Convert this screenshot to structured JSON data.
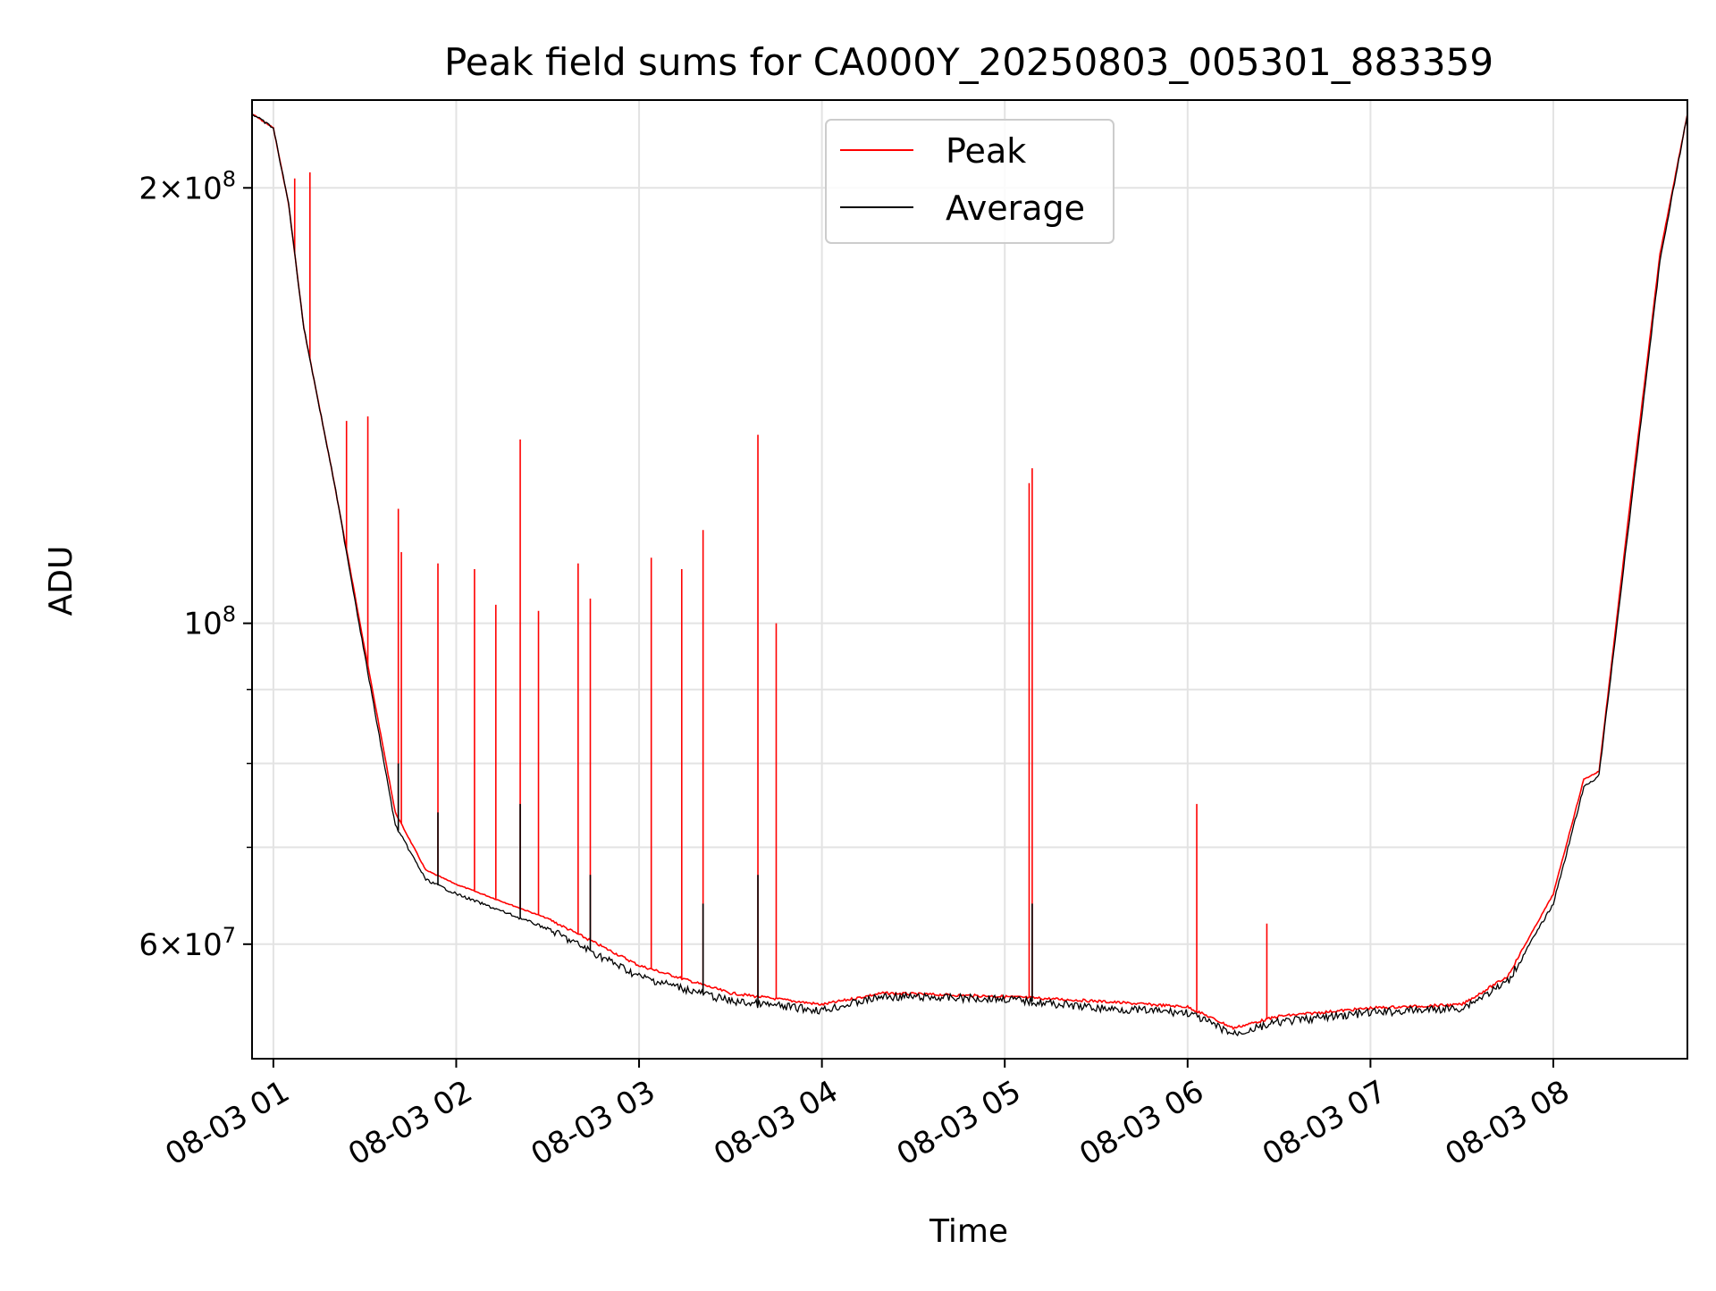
{
  "chart_data": {
    "type": "line",
    "title": "Peak field sums for CA000Y_20250803_005301_883359",
    "xlabel": "Time",
    "ylabel": "ADU",
    "y_scale": "log",
    "ylim": [
      50000000,
      230000000
    ],
    "xlim": [
      "2025-08-03 00:53:00",
      "2025-08-03 08:44:00"
    ],
    "grid": true,
    "legend_position": "upper-center",
    "x_tick_labels": [
      "08-03 01",
      "08-03 02",
      "08-03 03",
      "08-03 04",
      "08-03 05",
      "08-03 06",
      "08-03 07",
      "08-03 08"
    ],
    "x_ticks": [
      "2025-08-03 01:00",
      "2025-08-03 02:00",
      "2025-08-03 03:00",
      "2025-08-03 04:00",
      "2025-08-03 05:00",
      "2025-08-03 06:00",
      "2025-08-03 07:00",
      "2025-08-03 08:00"
    ],
    "y_major_ticks": [
      {
        "value": 60000000,
        "mantissa": "6",
        "exponent": "7"
      },
      {
        "value": 100000000,
        "mantissa": "",
        "exponent": "8"
      },
      {
        "value": 200000000,
        "mantissa": "2",
        "exponent": "8"
      }
    ],
    "y_minor_ticks": [
      70000000,
      80000000,
      90000000
    ],
    "series": [
      {
        "name": "Peak",
        "color": "#ff0000",
        "baseline": [
          [
            "2025-08-03 00:53",
            225000000
          ],
          [
            "2025-08-03 01:00",
            220000000
          ],
          [
            "2025-08-03 01:05",
            195000000
          ],
          [
            "2025-08-03 01:10",
            160000000
          ],
          [
            "2025-08-03 01:20",
            125000000
          ],
          [
            "2025-08-03 01:30",
            96000000
          ],
          [
            "2025-08-03 01:40",
            74000000
          ],
          [
            "2025-08-03 01:50",
            67500000
          ],
          [
            "2025-08-03 02:00",
            66000000
          ],
          [
            "2025-08-03 02:30",
            62500000
          ],
          [
            "2025-08-03 03:00",
            58000000
          ],
          [
            "2025-08-03 03:30",
            55500000
          ],
          [
            "2025-08-03 04:00",
            54500000
          ],
          [
            "2025-08-03 04:20",
            55500000
          ],
          [
            "2025-08-03 05:00",
            55200000
          ],
          [
            "2025-08-03 05:30",
            54800000
          ],
          [
            "2025-08-03 06:00",
            54300000
          ],
          [
            "2025-08-03 06:15",
            52500000
          ],
          [
            "2025-08-03 06:30",
            53500000
          ],
          [
            "2025-08-03 07:00",
            54200000
          ],
          [
            "2025-08-03 07:30",
            54500000
          ],
          [
            "2025-08-03 07:45",
            57000000
          ],
          [
            "2025-08-03 08:00",
            65000000
          ],
          [
            "2025-08-03 08:10",
            78000000
          ],
          [
            "2025-08-03 08:15",
            79000000
          ],
          [
            "2025-08-03 08:25",
            120000000
          ],
          [
            "2025-08-03 08:35",
            180000000
          ],
          [
            "2025-08-03 08:44",
            225000000
          ]
        ],
        "spikes": [
          [
            "2025-08-03 01:07",
            203000000
          ],
          [
            "2025-08-03 01:12",
            205000000
          ],
          [
            "2025-08-03 01:24",
            138000000
          ],
          [
            "2025-08-03 01:31",
            139000000
          ],
          [
            "2025-08-03 01:41",
            120000000
          ],
          [
            "2025-08-03 01:42",
            112000000
          ],
          [
            "2025-08-03 01:54",
            110000000
          ],
          [
            "2025-08-03 02:06",
            109000000
          ],
          [
            "2025-08-03 02:13",
            103000000
          ],
          [
            "2025-08-03 02:21",
            134000000
          ],
          [
            "2025-08-03 02:27",
            102000000
          ],
          [
            "2025-08-03 02:40",
            110000000
          ],
          [
            "2025-08-03 02:44",
            104000000
          ],
          [
            "2025-08-03 03:04",
            111000000
          ],
          [
            "2025-08-03 03:14",
            109000000
          ],
          [
            "2025-08-03 03:21",
            116000000
          ],
          [
            "2025-08-03 03:39",
            135000000
          ],
          [
            "2025-08-03 03:45",
            100000000
          ],
          [
            "2025-08-03 05:08",
            125000000
          ],
          [
            "2025-08-03 05:09",
            128000000
          ],
          [
            "2025-08-03 06:03",
            75000000
          ],
          [
            "2025-08-03 06:26",
            62000000
          ]
        ]
      },
      {
        "name": "Average",
        "color": "#000000",
        "baseline": [
          [
            "2025-08-03 00:53",
            225000000
          ],
          [
            "2025-08-03 01:00",
            220000000
          ],
          [
            "2025-08-03 01:05",
            195000000
          ],
          [
            "2025-08-03 01:10",
            160000000
          ],
          [
            "2025-08-03 01:20",
            125000000
          ],
          [
            "2025-08-03 01:30",
            95000000
          ],
          [
            "2025-08-03 01:40",
            72500000
          ],
          [
            "2025-08-03 01:50",
            66500000
          ],
          [
            "2025-08-03 02:00",
            65000000
          ],
          [
            "2025-08-03 02:30",
            61500000
          ],
          [
            "2025-08-03 03:00",
            57000000
          ],
          [
            "2025-08-03 03:30",
            54800000
          ],
          [
            "2025-08-03 04:00",
            54000000
          ],
          [
            "2025-08-03 04:20",
            55200000
          ],
          [
            "2025-08-03 05:00",
            55000000
          ],
          [
            "2025-08-03 05:30",
            54200000
          ],
          [
            "2025-08-03 06:00",
            53800000
          ],
          [
            "2025-08-03 06:15",
            52000000
          ],
          [
            "2025-08-03 06:30",
            53000000
          ],
          [
            "2025-08-03 07:00",
            53800000
          ],
          [
            "2025-08-03 07:30",
            54200000
          ],
          [
            "2025-08-03 07:45",
            56500000
          ],
          [
            "2025-08-03 08:00",
            64000000
          ],
          [
            "2025-08-03 08:10",
            77000000
          ],
          [
            "2025-08-03 08:15",
            78500000
          ],
          [
            "2025-08-03 08:25",
            118000000
          ],
          [
            "2025-08-03 08:35",
            178000000
          ],
          [
            "2025-08-03 08:44",
            225000000
          ]
        ],
        "spikes": [
          [
            "2025-08-03 01:41",
            80000000
          ],
          [
            "2025-08-03 01:54",
            74000000
          ],
          [
            "2025-08-03 02:21",
            75000000
          ],
          [
            "2025-08-03 02:44",
            67000000
          ],
          [
            "2025-08-03 03:21",
            64000000
          ],
          [
            "2025-08-03 03:39",
            67000000
          ],
          [
            "2025-08-03 05:09",
            64000000
          ]
        ]
      }
    ]
  }
}
